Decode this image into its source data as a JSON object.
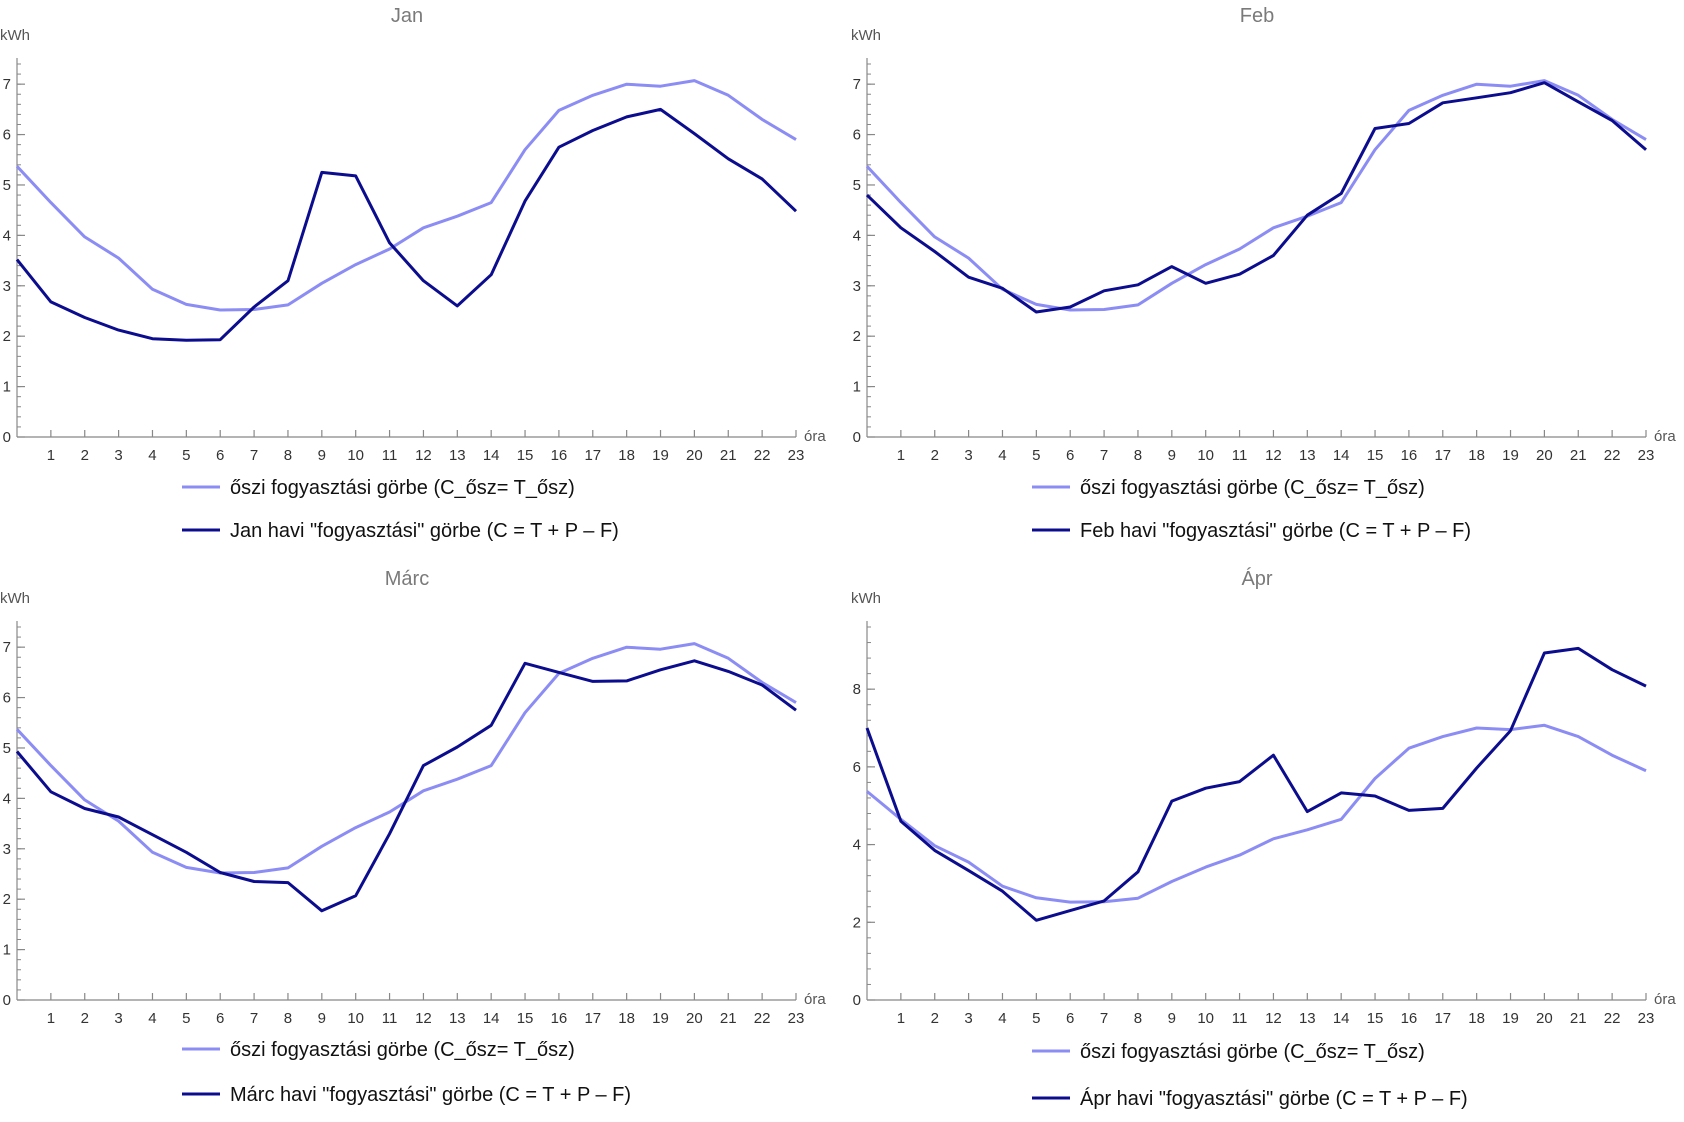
{
  "colors": {
    "autumn": "#8c8cf5",
    "monthly": "#0c0c8f",
    "axis": "#888888",
    "text": "#333333"
  },
  "legend_autumn_label": "őszi fogyasztási görbe (C_ősz= T_ősz)",
  "x_unit": "óra",
  "y_unit": "kWh",
  "chart_data": [
    {
      "type": "line",
      "title": "Jan",
      "xlabel": "óra",
      "ylabel": "kWh",
      "x": [
        0,
        1,
        2,
        3,
        4,
        5,
        6,
        7,
        8,
        9,
        10,
        11,
        12,
        13,
        14,
        15,
        16,
        17,
        18,
        19,
        20,
        21,
        22,
        23
      ],
      "xticks": [
        1,
        2,
        3,
        4,
        5,
        6,
        7,
        8,
        9,
        10,
        11,
        12,
        13,
        14,
        15,
        16,
        17,
        18,
        19,
        20,
        21,
        22,
        23
      ],
      "yticks": [
        0,
        1,
        2,
        3,
        4,
        5,
        6,
        7
      ],
      "ylim": [
        0,
        7.4
      ],
      "legend_position": "bottom",
      "series": [
        {
          "name": "őszi fogyasztási görbe (C_ősz= T_ősz)",
          "role": "autumn",
          "values": [
            5.37,
            4.65,
            3.97,
            3.55,
            2.93,
            2.63,
            2.52,
            2.53,
            2.62,
            3.05,
            3.42,
            3.73,
            4.15,
            4.38,
            4.65,
            5.7,
            6.48,
            6.78,
            7.0,
            6.96,
            7.07,
            6.78,
            6.3,
            5.9
          ]
        },
        {
          "name": "Jan havi \"fogyasztási\" görbe (C = T + P – F)",
          "role": "monthly",
          "values": [
            3.52,
            2.68,
            2.37,
            2.12,
            1.95,
            1.92,
            1.93,
            2.58,
            3.1,
            5.25,
            5.18,
            3.85,
            3.1,
            2.6,
            3.22,
            4.68,
            5.75,
            6.08,
            6.35,
            6.5,
            6.02,
            5.52,
            5.12,
            4.48
          ]
        }
      ]
    },
    {
      "type": "line",
      "title": "Feb",
      "xlabel": "óra",
      "ylabel": "kWh",
      "x": [
        0,
        1,
        2,
        3,
        4,
        5,
        6,
        7,
        8,
        9,
        10,
        11,
        12,
        13,
        14,
        15,
        16,
        17,
        18,
        19,
        20,
        21,
        22,
        23
      ],
      "xticks": [
        1,
        2,
        3,
        4,
        5,
        6,
        7,
        8,
        9,
        10,
        11,
        12,
        13,
        14,
        15,
        16,
        17,
        18,
        19,
        20,
        21,
        22,
        23
      ],
      "yticks": [
        0,
        1,
        2,
        3,
        4,
        5,
        6,
        7
      ],
      "ylim": [
        0,
        7.4
      ],
      "legend_position": "bottom",
      "series": [
        {
          "name": "őszi fogyasztási görbe (C_ősz= T_ősz)",
          "role": "autumn",
          "values": [
            5.37,
            4.65,
            3.97,
            3.55,
            2.93,
            2.63,
            2.52,
            2.53,
            2.62,
            3.05,
            3.42,
            3.73,
            4.15,
            4.38,
            4.65,
            5.7,
            6.48,
            6.78,
            7.0,
            6.96,
            7.07,
            6.78,
            6.3,
            5.9
          ]
        },
        {
          "name": "Feb havi \"fogyasztási\" görbe (C = T + P – F)",
          "role": "monthly",
          "values": [
            4.8,
            4.15,
            3.68,
            3.17,
            2.95,
            2.48,
            2.58,
            2.9,
            3.02,
            3.38,
            3.05,
            3.23,
            3.6,
            4.4,
            4.83,
            6.12,
            6.22,
            6.63,
            6.73,
            6.83,
            7.03,
            6.65,
            6.28,
            5.7
          ]
        }
      ]
    },
    {
      "type": "line",
      "title": "Márc",
      "xlabel": "óra",
      "ylabel": "kWh",
      "x": [
        0,
        1,
        2,
        3,
        4,
        5,
        6,
        7,
        8,
        9,
        10,
        11,
        12,
        13,
        14,
        15,
        16,
        17,
        18,
        19,
        20,
        21,
        22,
        23
      ],
      "xticks": [
        1,
        2,
        3,
        4,
        5,
        6,
        7,
        8,
        9,
        10,
        11,
        12,
        13,
        14,
        15,
        16,
        17,
        18,
        19,
        20,
        21,
        22,
        23
      ],
      "yticks": [
        0,
        1,
        2,
        3,
        4,
        5,
        6,
        7
      ],
      "ylim": [
        0,
        7.4
      ],
      "legend_position": "bottom",
      "series": [
        {
          "name": "őszi fogyasztási görbe (C_ősz= T_ősz)",
          "role": "autumn",
          "values": [
            5.37,
            4.65,
            3.97,
            3.55,
            2.93,
            2.63,
            2.52,
            2.53,
            2.62,
            3.05,
            3.42,
            3.73,
            4.15,
            4.38,
            4.65,
            5.7,
            6.48,
            6.78,
            7.0,
            6.96,
            7.07,
            6.78,
            6.3,
            5.9
          ]
        },
        {
          "name": "Márc havi \"fogyasztási\" görbe (C = T + P – F)",
          "role": "monthly",
          "values": [
            4.93,
            4.13,
            3.8,
            3.63,
            3.28,
            2.93,
            2.53,
            2.35,
            2.33,
            1.77,
            2.07,
            3.3,
            4.65,
            5.02,
            5.45,
            6.68,
            6.5,
            6.32,
            6.33,
            6.55,
            6.73,
            6.52,
            6.25,
            5.75
          ]
        }
      ]
    },
    {
      "type": "line",
      "title": "Ápr",
      "xlabel": "óra",
      "ylabel": "kWh",
      "x": [
        0,
        1,
        2,
        3,
        4,
        5,
        6,
        7,
        8,
        9,
        10,
        11,
        12,
        13,
        14,
        15,
        16,
        17,
        18,
        19,
        20,
        21,
        22,
        23
      ],
      "xticks": [
        1,
        2,
        3,
        4,
        5,
        6,
        7,
        8,
        9,
        10,
        11,
        12,
        13,
        14,
        15,
        16,
        17,
        18,
        19,
        20,
        21,
        22,
        23
      ],
      "yticks": [
        0,
        2,
        4,
        6,
        8
      ],
      "ylim": [
        0,
        9.6
      ],
      "legend_position": "bottom",
      "series": [
        {
          "name": "őszi fogyasztási görbe (C_ősz= T_ősz)",
          "role": "autumn",
          "values": [
            5.37,
            4.65,
            3.97,
            3.55,
            2.93,
            2.63,
            2.52,
            2.53,
            2.62,
            3.05,
            3.42,
            3.73,
            4.15,
            4.38,
            4.65,
            5.7,
            6.48,
            6.78,
            7.0,
            6.96,
            7.07,
            6.78,
            6.3,
            5.9
          ]
        },
        {
          "name": "Ápr havi \"fogyasztási\" görbe (C = T + P – F)",
          "role": "monthly",
          "values": [
            7.0,
            4.6,
            3.85,
            3.33,
            2.8,
            2.05,
            2.3,
            2.55,
            3.3,
            5.12,
            5.45,
            5.62,
            6.3,
            4.85,
            5.33,
            5.25,
            4.88,
            4.93,
            5.97,
            6.93,
            8.93,
            9.05,
            8.5,
            8.08
          ]
        }
      ]
    }
  ]
}
